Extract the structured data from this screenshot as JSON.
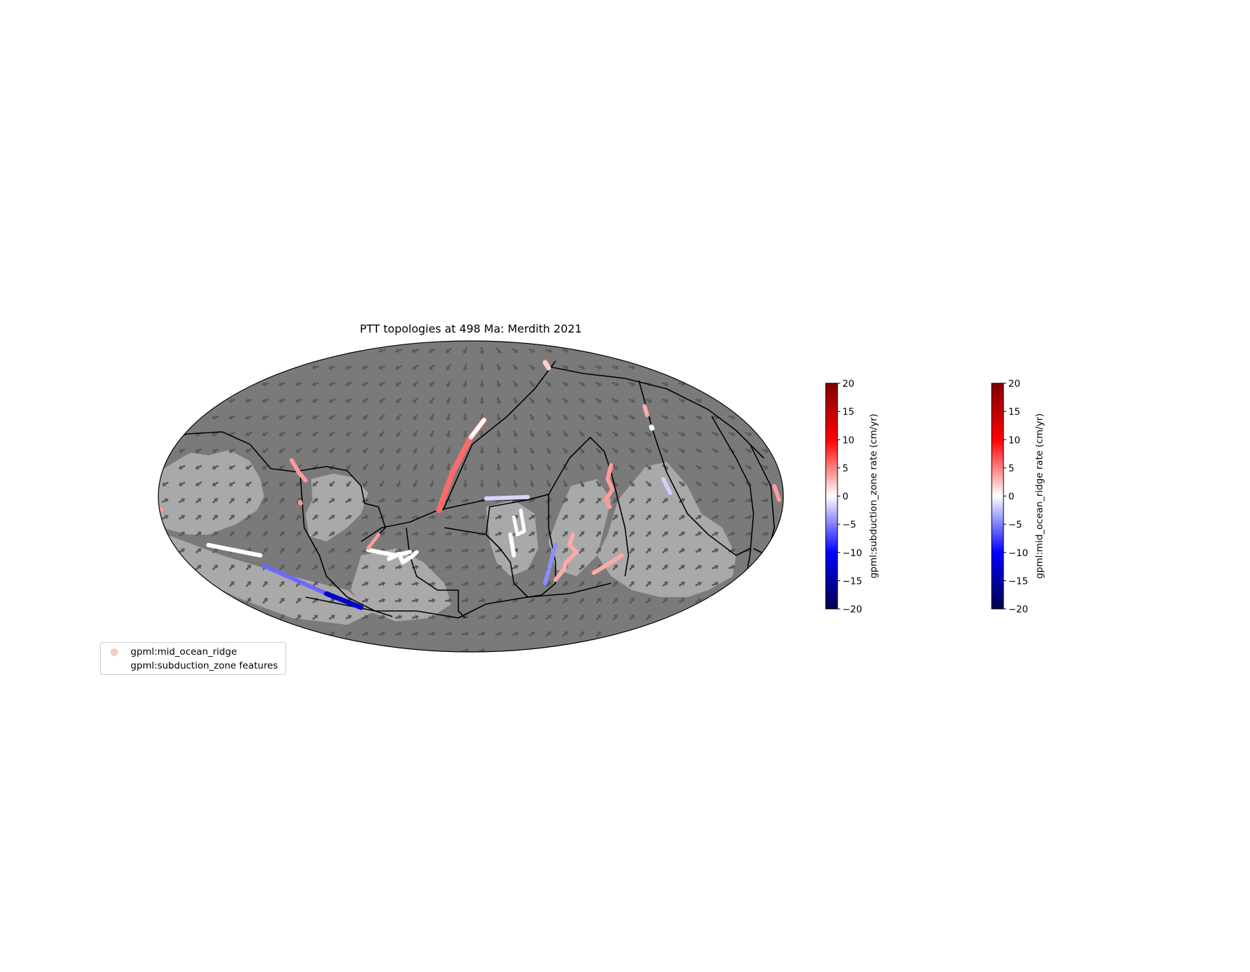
{
  "figure": {
    "title": "PTT topologies at 498 Ma: Merdith 2021",
    "projection": "Mollweide",
    "colors": {
      "ocean": "#7a7a7a",
      "continent": "#a9a9a9",
      "arrow": "#5a5a5a",
      "plate_boundary": "#000000",
      "background": "#ffffff"
    }
  },
  "colorbars": [
    {
      "label": "gpml:subduction_zone rate (cm/yr)",
      "colormap": "seismic",
      "vmin": -20,
      "vmax": 20,
      "ticks": [
        "20",
        "15",
        "10",
        "5",
        "0",
        "−5",
        "−10",
        "−15",
        "−20"
      ]
    },
    {
      "label": "gpml:mid_ocean_ridge rate (cm/yr)",
      "colormap": "seismic",
      "vmin": -20,
      "vmax": 20,
      "ticks": [
        "20",
        "15",
        "10",
        "5",
        "0",
        "−5",
        "−10",
        "−15",
        "−20"
      ]
    }
  ],
  "legend": {
    "entries": [
      {
        "label": "gpml:mid_ocean_ridge",
        "color": "#f7c9c9"
      },
      {
        "label": "gpml:subduction_zone features",
        "color": "#ffffff"
      }
    ]
  }
}
